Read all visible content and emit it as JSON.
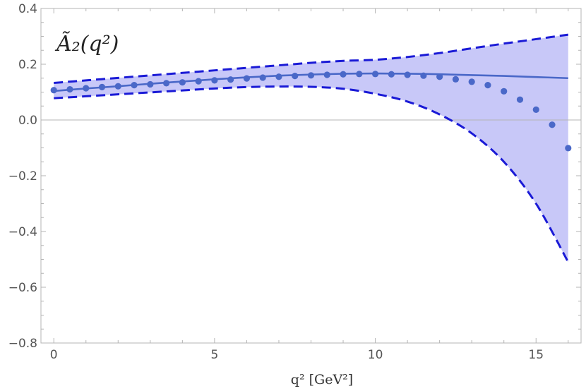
{
  "chart_data": {
    "type": "line",
    "title": "",
    "panel_label": "Ã₂(q²)",
    "xlabel": "q² [GeV²]",
    "ylabel": "",
    "xlim": [
      -0.4,
      16.4
    ],
    "ylim": [
      -0.8,
      0.4
    ],
    "x_ticks": [
      0,
      5,
      10,
      15
    ],
    "x_tick_labels": [
      "0",
      "5",
      "10",
      "15"
    ],
    "y_ticks": [
      -0.8,
      -0.6,
      -0.4,
      -0.2,
      0.0,
      0.2,
      0.4
    ],
    "y_tick_labels": [
      "−0.8",
      "−0.6",
      "−0.4",
      "−0.2",
      "0.0",
      "0.2",
      "0.4"
    ],
    "grid": false,
    "zero_line": true,
    "colors": {
      "band_fill": "#c8c8f8",
      "band_edge": "#1a1ad6",
      "central_line": "#4a68c8",
      "points": "#4a68c8",
      "zero_line": "#b4b4b4",
      "frame": "#b4b4b4",
      "tick_label": "#555555"
    },
    "band": {
      "x": [
        0,
        1,
        2,
        3,
        4,
        5,
        6,
        7,
        8,
        9,
        10,
        11,
        12,
        13,
        14,
        15,
        16
      ],
      "upper": [
        0.133,
        0.142,
        0.151,
        0.16,
        0.169,
        0.178,
        0.187,
        0.196,
        0.205,
        0.212,
        0.216,
        0.226,
        0.24,
        0.257,
        0.274,
        0.29,
        0.306
      ],
      "lower": [
        0.078,
        0.085,
        0.092,
        0.099,
        0.106,
        0.113,
        0.118,
        0.12,
        0.119,
        0.112,
        0.094,
        0.066,
        0.02,
        -0.048,
        -0.15,
        -0.3,
        -0.51
      ]
    },
    "series": [
      {
        "kind": "line",
        "x": [
          0,
          1,
          2,
          3,
          4,
          5,
          6,
          7,
          8,
          9,
          10,
          11,
          12,
          13,
          14,
          15,
          16
        ],
        "values": [
          0.104,
          0.113,
          0.121,
          0.13,
          0.138,
          0.146,
          0.153,
          0.159,
          0.163,
          0.166,
          0.167,
          0.166,
          0.164,
          0.161,
          0.158,
          0.154,
          0.15
        ]
      },
      {
        "kind": "points",
        "x": [
          0,
          0.5,
          1,
          1.5,
          2,
          2.5,
          3,
          3.5,
          4,
          4.5,
          5,
          5.5,
          6,
          6.5,
          7,
          7.5,
          8,
          8.5,
          9,
          9.5,
          10,
          10.5,
          11,
          11.5,
          12,
          12.5,
          13,
          13.5,
          14,
          14.5,
          15,
          15.5,
          16
        ],
        "values": [
          0.107,
          0.11,
          0.114,
          0.118,
          0.121,
          0.125,
          0.128,
          0.132,
          0.135,
          0.139,
          0.142,
          0.145,
          0.149,
          0.152,
          0.155,
          0.158,
          0.16,
          0.162,
          0.164,
          0.165,
          0.165,
          0.164,
          0.162,
          0.159,
          0.155,
          0.146,
          0.137,
          0.125,
          0.103,
          0.073,
          0.037,
          -0.017,
          -0.101
        ]
      }
    ]
  }
}
